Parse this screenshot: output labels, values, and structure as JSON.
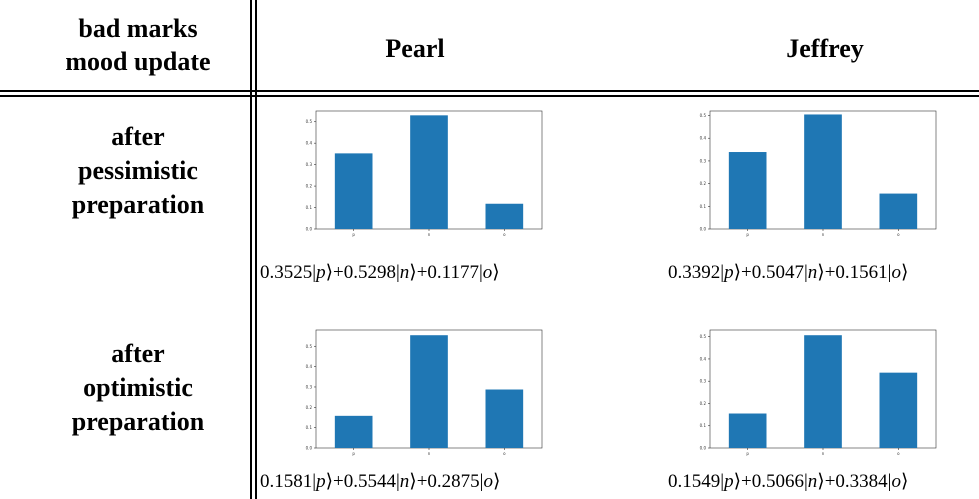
{
  "table": {
    "corner_header": [
      "bad marks",
      "mood update"
    ],
    "column_headers": [
      "Pearl",
      "Jeffrey"
    ],
    "rows": [
      {
        "label": [
          "after",
          "pessimistic",
          "preparation"
        ],
        "cells": [
          {
            "formula": "0.3525|p⟩+0.5298|n⟩+0.1177|o⟩"
          },
          {
            "formula": "0.3392|p⟩+0.5047|n⟩+0.1561|o⟩"
          }
        ]
      },
      {
        "label": [
          "after",
          "optimistic",
          "preparation"
        ],
        "cells": [
          {
            "formula": "0.1581|p⟩+0.5544|n⟩+0.2875|o⟩"
          },
          {
            "formula": "0.1549|p⟩+0.5066|n⟩+0.3384|o⟩"
          }
        ]
      }
    ]
  },
  "chart_data": [
    {
      "type": "bar",
      "categories": [
        "p",
        "n",
        "o"
      ],
      "values": [
        0.3525,
        0.5298,
        0.1177
      ],
      "ylim": [
        0,
        0.55
      ],
      "yticks": [
        "0.0",
        "0.1",
        "0.2",
        "0.3",
        "0.4",
        "0.5"
      ],
      "color": "#1f77b4"
    },
    {
      "type": "bar",
      "categories": [
        "p",
        "n",
        "o"
      ],
      "values": [
        0.3392,
        0.5047,
        0.1561
      ],
      "ylim": [
        0,
        0.52
      ],
      "yticks": [
        "0.0",
        "0.1",
        "0.2",
        "0.3",
        "0.4",
        "0.5"
      ],
      "color": "#1f77b4"
    },
    {
      "type": "bar",
      "categories": [
        "p",
        "n",
        "o"
      ],
      "values": [
        0.1581,
        0.5544,
        0.2875
      ],
      "ylim": [
        0,
        0.58
      ],
      "yticks": [
        "0.0",
        "0.1",
        "0.2",
        "0.3",
        "0.4",
        "0.5"
      ],
      "color": "#1f77b4"
    },
    {
      "type": "bar",
      "categories": [
        "p",
        "n",
        "o"
      ],
      "values": [
        0.1549,
        0.5066,
        0.3384
      ],
      "ylim": [
        0,
        0.53
      ],
      "yticks": [
        "0.0",
        "0.1",
        "0.2",
        "0.3",
        "0.4",
        "0.5"
      ],
      "color": "#1f77b4"
    }
  ]
}
